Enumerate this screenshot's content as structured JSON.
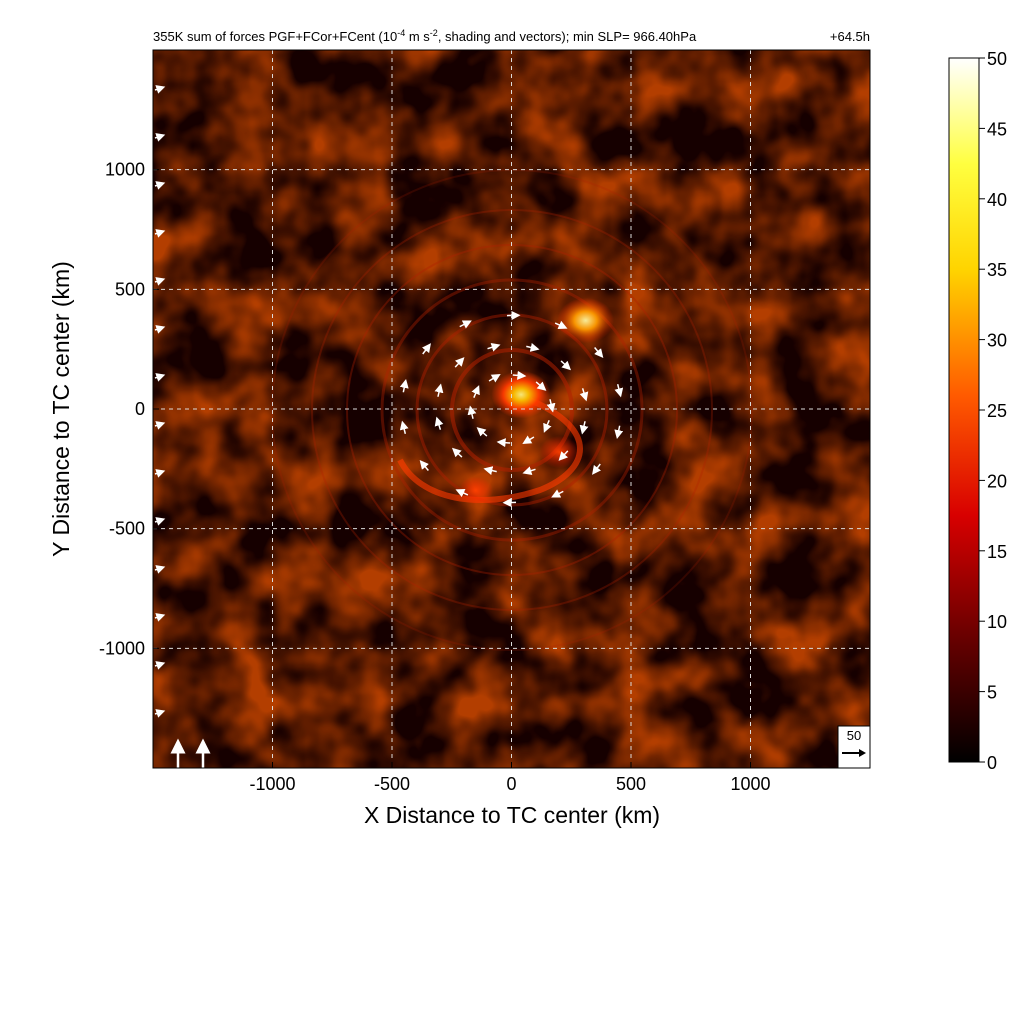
{
  "figure": {
    "title_pre": "355K sum of forces PGF+FCor+FCent (10",
    "title_exp1": "-4",
    "title_mid": " m s",
    "title_exp2": "-2",
    "title_post": ", shading and vectors); min SLP= 966.40hPa",
    "time_label": "+64.5h",
    "ref_vector_label": "50"
  },
  "colors": {
    "background_dark": "#120000",
    "field_mid": "#8a1400",
    "field_hot": "#ff2a00",
    "field_peak": "#ffd000",
    "grid": "#dcdcdc",
    "vector": "#ffffff"
  },
  "chart_data": {
    "type": "heatmap",
    "title": "355K sum of forces PGF+FCor+FCent (10^-4 m s^-2, shading and vectors); min SLP= 966.40hPa",
    "xlabel": "X Distance to TC center (km)",
    "ylabel": "Y Distance to TC center (km)",
    "xlim": [
      -1500,
      1500
    ],
    "ylim": [
      -1500,
      1500
    ],
    "xticks": [
      -1000,
      -500,
      0,
      500,
      1000
    ],
    "yticks": [
      -1000,
      -500,
      0,
      500,
      1000
    ],
    "xtick_labels": [
      "-1000",
      "-500",
      "0",
      "500",
      "1000"
    ],
    "ytick_labels": [
      "-1000",
      "-500",
      "0",
      "500",
      "1000"
    ],
    "grid": true,
    "colorbar": {
      "range": [
        0,
        50
      ],
      "ticks": [
        0,
        5,
        10,
        15,
        20,
        25,
        30,
        35,
        40,
        45,
        50
      ],
      "tick_labels": [
        "0",
        "5",
        "10",
        "15",
        "20",
        "25",
        "30",
        "35",
        "40",
        "45",
        "50"
      ],
      "colormap": "hot",
      "placement": "right"
    },
    "reference_vector": 50,
    "features": [
      {
        "name": "core maximum",
        "x": 40,
        "y": 60,
        "value": 32
      },
      {
        "name": "outer hot spot",
        "x": 310,
        "y": 370,
        "value": 30
      },
      {
        "name": "spiral band",
        "x": 200,
        "y": -180,
        "value": 18
      },
      {
        "name": "inner ring",
        "x": -150,
        "y": -340,
        "value": 14
      }
    ]
  }
}
